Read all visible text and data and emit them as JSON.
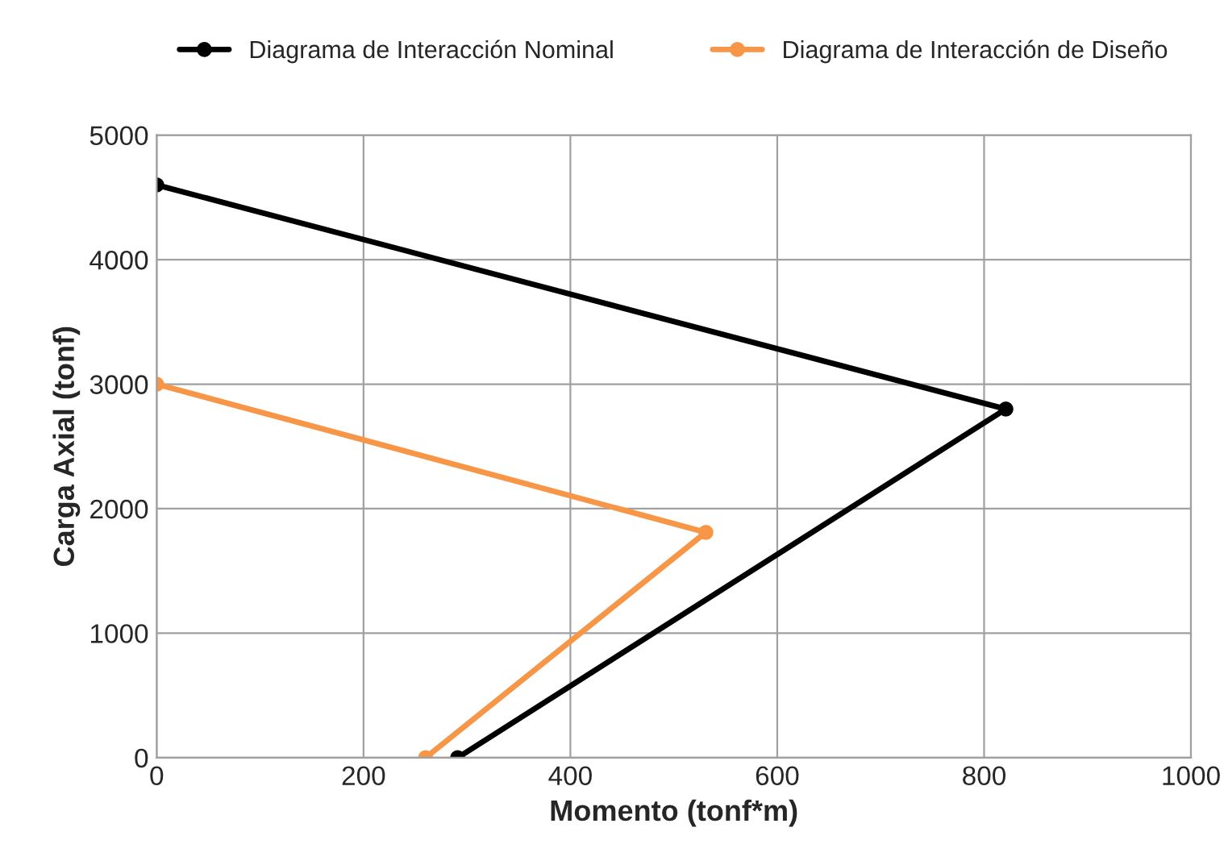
{
  "chart_data": {
    "type": "line",
    "xlabel": "Momento (tonf*m)",
    "ylabel": "Carga Axial (tonf)",
    "series": [
      {
        "name": "Diagrama de Interacción Nominal",
        "color": "#000000",
        "x": [
          0,
          821,
          291
        ],
        "values": [
          4600,
          2800,
          0
        ]
      },
      {
        "name": "Diagrama de Interacción de Diseño",
        "color": "#f79646",
        "x": [
          0,
          531,
          260
        ],
        "values": [
          3000,
          1810,
          0
        ]
      }
    ],
    "xlim": [
      0,
      1000
    ],
    "xticks": [
      0,
      200,
      400,
      600,
      800,
      1000
    ],
    "ylim": [
      0,
      5000
    ],
    "yticks": [
      0,
      1000,
      2000,
      3000,
      4000,
      5000
    ],
    "grid": true,
    "legend": "top",
    "marker": "circle",
    "line_style": "solid"
  }
}
